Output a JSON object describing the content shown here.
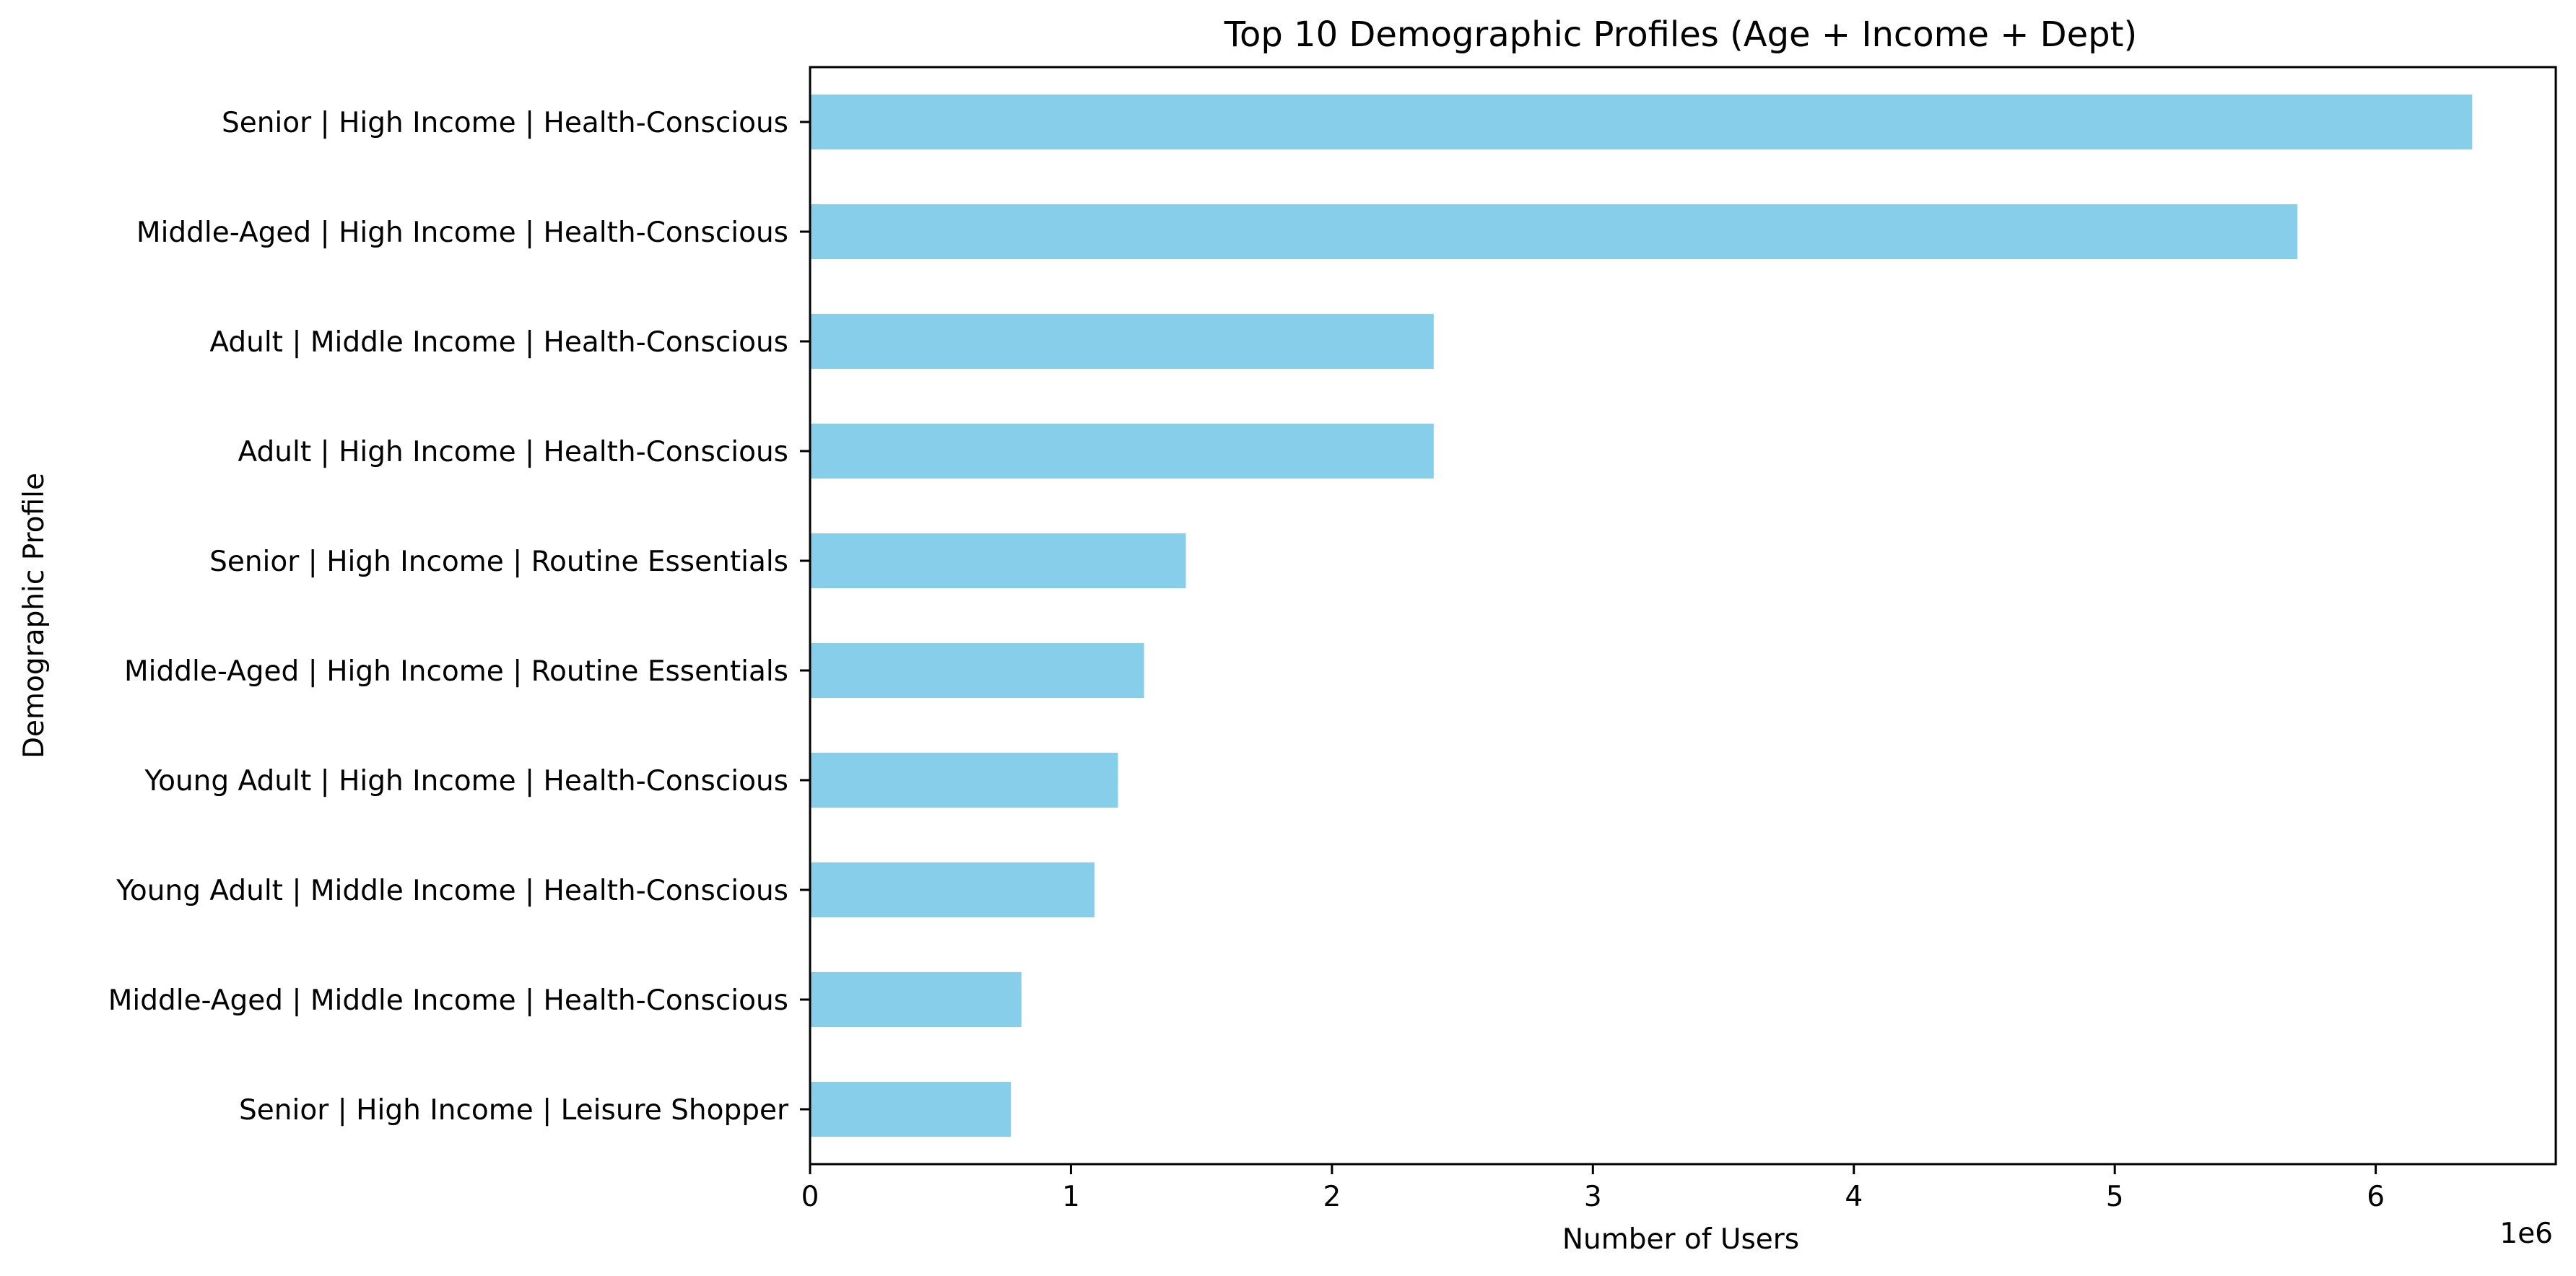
{
  "chart_data": {
    "type": "bar",
    "orientation": "horizontal",
    "title": "Top 10 Demographic Profiles (Age + Income + Dept)",
    "xlabel": "Number of Users",
    "ylabel": "Demographic Profile",
    "x_offset_text": "1e6",
    "xlim": [
      0,
      6.69
    ],
    "xticks": [
      0,
      1,
      2,
      3,
      4,
      5,
      6
    ],
    "xtick_labels": [
      "0",
      "1",
      "2",
      "3",
      "4",
      "5",
      "6"
    ],
    "categories": [
      "Senior | High Income | Health-Conscious",
      "Middle-Aged | High Income | Health-Conscious",
      "Adult | Middle Income | Health-Conscious",
      "Adult | High Income | Health-Conscious",
      "Senior | High Income | Routine Essentials",
      "Middle-Aged | High Income | Routine Essentials",
      "Young Adult | High Income | Health-Conscious",
      "Young Adult | Middle Income | Health-Conscious",
      "Middle-Aged | Middle Income | Health-Conscious",
      "Senior | High Income | Leisure Shopper"
    ],
    "values": [
      6.37,
      5.7,
      2.39,
      2.39,
      1.44,
      1.28,
      1.18,
      1.09,
      0.81,
      0.77
    ],
    "bar_color": "#87CEEB",
    "grid": false,
    "legend": "none"
  }
}
